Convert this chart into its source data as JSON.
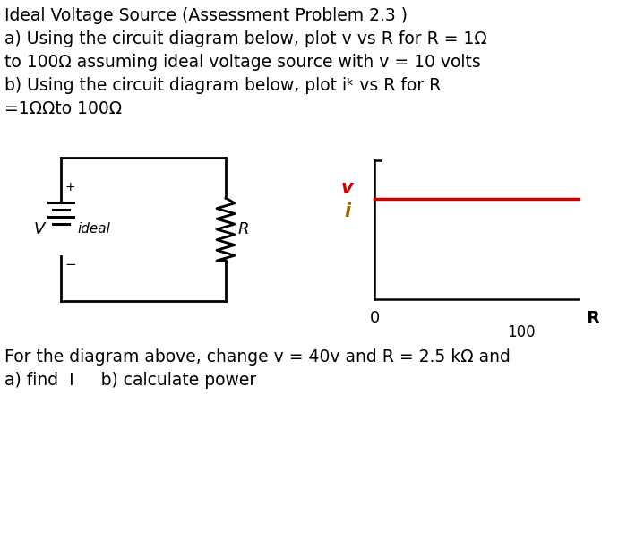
{
  "bg_color": "#ffffff",
  "title_line1": "Ideal Voltage Source (Assessment Problem 2.3 )",
  "line2": "a) Using the circuit diagram below, plot v vs R for R = 1Ω",
  "line3": "to 100Ω assuming ideal voltage source with v = 10 volts",
  "line4": "b) Using the circuit diagram below, plot iᵏ vs R for R",
  "line5": "=1ΩΩto 100Ω",
  "bottom_line1": "For the diagram above, change v = 40v and R = 2.5 kΩ and",
  "bottom_line2": "a) find  I     b) calculate power",
  "zero_label": "0",
  "R_label": "R",
  "hundred_label": "100",
  "v_label_color": "#cc0000",
  "i_label_color": "#996600",
  "circuit_color": "#000000",
  "graph_line_v_color": "#cc0000",
  "font_size_text": 13.5,
  "font_size_labels": 13
}
